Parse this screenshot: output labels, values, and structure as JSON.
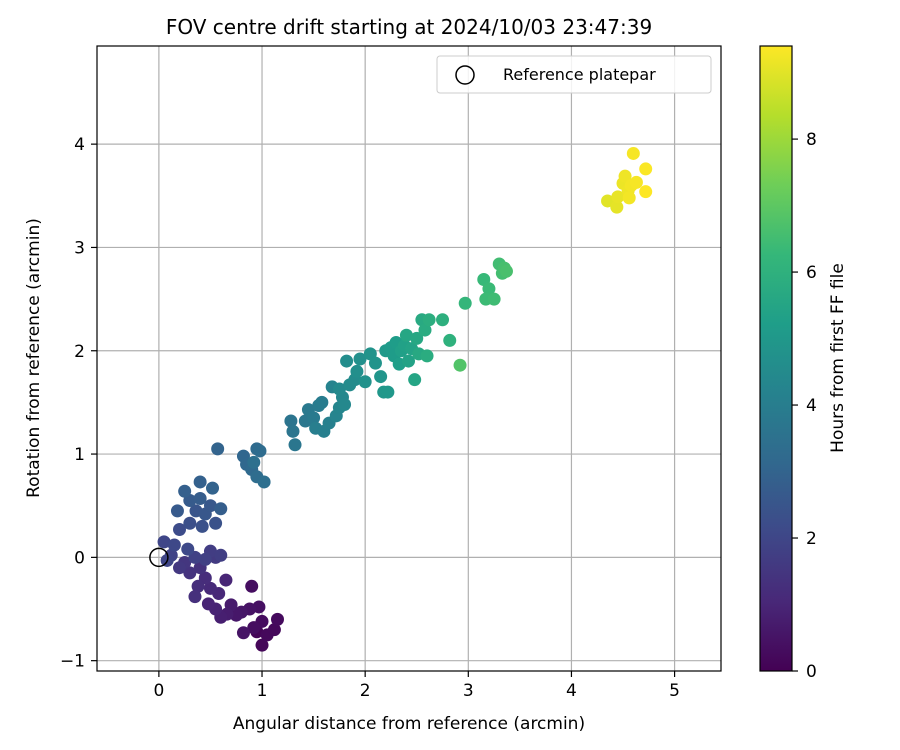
{
  "chart_data": {
    "type": "scatter",
    "title": "FOV centre drift starting at 2024/10/03 23:47:39",
    "xlabel": "Angular distance from reference (arcmin)",
    "ylabel": "Rotation from reference (arcmin)",
    "xlim": [
      -0.6,
      5.45
    ],
    "ylim": [
      -1.1,
      4.95
    ],
    "xticks": [
      0,
      1,
      2,
      3,
      4,
      5
    ],
    "yticks": [
      -1,
      0,
      1,
      2,
      3,
      4
    ],
    "grid": true,
    "legend": {
      "position": "top-right",
      "label": "Reference platepar"
    },
    "colorbar": {
      "label": "Hours from first FF file",
      "colormap": "viridis",
      "range": [
        0,
        9.4
      ],
      "ticks": [
        0,
        2,
        4,
        6,
        8
      ]
    },
    "colormap_stops": [
      "#440154",
      "#482878",
      "#3e4989",
      "#31688e",
      "#26828e",
      "#1f9e89",
      "#35b779",
      "#6ece58",
      "#b5de2b",
      "#fde725"
    ],
    "reference_point": {
      "x": 0.0,
      "y": 0.0
    },
    "series": [
      {
        "points": [
          {
            "x": 0.95,
            "y": -0.72,
            "c": 0.1
          },
          {
            "x": 1.0,
            "y": -0.85,
            "c": 0.15
          },
          {
            "x": 1.05,
            "y": -0.75,
            "c": 0.2
          },
          {
            "x": 1.12,
            "y": -0.7,
            "c": 0.2
          },
          {
            "x": 1.15,
            "y": -0.6,
            "c": 0.25
          },
          {
            "x": 1.0,
            "y": -0.62,
            "c": 0.3
          },
          {
            "x": 0.92,
            "y": -0.68,
            "c": 0.35
          },
          {
            "x": 0.9,
            "y": -0.28,
            "c": 0.35
          },
          {
            "x": 0.97,
            "y": -0.48,
            "c": 0.4
          },
          {
            "x": 0.88,
            "y": -0.5,
            "c": 0.45
          },
          {
            "x": 0.82,
            "y": -0.73,
            "c": 0.5
          },
          {
            "x": 0.8,
            "y": -0.53,
            "c": 0.55
          },
          {
            "x": 0.75,
            "y": -0.56,
            "c": 0.6
          },
          {
            "x": 0.7,
            "y": -0.46,
            "c": 0.7
          },
          {
            "x": 0.66,
            "y": -0.55,
            "c": 0.75
          },
          {
            "x": 0.6,
            "y": -0.58,
            "c": 0.8
          },
          {
            "x": 0.55,
            "y": -0.5,
            "c": 0.9
          },
          {
            "x": 0.48,
            "y": -0.45,
            "c": 0.95
          },
          {
            "x": 0.65,
            "y": -0.22,
            "c": 1.0
          },
          {
            "x": 0.58,
            "y": -0.35,
            "c": 1.05
          },
          {
            "x": 0.5,
            "y": -0.3,
            "c": 1.1
          },
          {
            "x": 0.45,
            "y": -0.2,
            "c": 1.2
          },
          {
            "x": 0.38,
            "y": -0.28,
            "c": 1.25
          },
          {
            "x": 0.35,
            "y": -0.38,
            "c": 1.3
          },
          {
            "x": 0.4,
            "y": -0.1,
            "c": 1.35
          },
          {
            "x": 0.3,
            "y": -0.15,
            "c": 1.4
          },
          {
            "x": 0.25,
            "y": -0.05,
            "c": 1.5
          },
          {
            "x": 0.2,
            "y": -0.1,
            "c": 1.55
          },
          {
            "x": 0.55,
            "y": 0.0,
            "c": 1.6
          },
          {
            "x": 0.5,
            "y": 0.06,
            "c": 1.7
          },
          {
            "x": 0.6,
            "y": 0.02,
            "c": 1.75
          },
          {
            "x": 0.45,
            "y": -0.02,
            "c": 1.8
          },
          {
            "x": 0.35,
            "y": 0.0,
            "c": 1.85
          },
          {
            "x": 0.12,
            "y": 0.02,
            "c": 1.9
          },
          {
            "x": 0.08,
            "y": -0.03,
            "c": 1.95
          },
          {
            "x": 0.05,
            "y": 0.15,
            "c": 2.0
          },
          {
            "x": 0.15,
            "y": 0.12,
            "c": 2.05
          },
          {
            "x": 0.28,
            "y": 0.08,
            "c": 2.1
          },
          {
            "x": 0.2,
            "y": 0.27,
            "c": 2.2
          },
          {
            "x": 0.3,
            "y": 0.33,
            "c": 2.3
          },
          {
            "x": 0.42,
            "y": 0.3,
            "c": 2.35
          },
          {
            "x": 0.55,
            "y": 0.33,
            "c": 2.4
          },
          {
            "x": 0.36,
            "y": 0.45,
            "c": 2.5
          },
          {
            "x": 0.45,
            "y": 0.42,
            "c": 2.55
          },
          {
            "x": 0.5,
            "y": 0.5,
            "c": 2.6
          },
          {
            "x": 0.18,
            "y": 0.45,
            "c": 2.65
          },
          {
            "x": 0.3,
            "y": 0.55,
            "c": 2.7
          },
          {
            "x": 0.4,
            "y": 0.57,
            "c": 2.75
          },
          {
            "x": 0.6,
            "y": 0.47,
            "c": 2.8
          },
          {
            "x": 0.25,
            "y": 0.64,
            "c": 2.85
          },
          {
            "x": 0.4,
            "y": 0.73,
            "c": 2.9
          },
          {
            "x": 0.52,
            "y": 0.67,
            "c": 2.95
          },
          {
            "x": 0.57,
            "y": 1.05,
            "c": 3.0
          },
          {
            "x": 0.82,
            "y": 0.98,
            "c": 3.1
          },
          {
            "x": 0.85,
            "y": 0.9,
            "c": 3.15
          },
          {
            "x": 0.9,
            "y": 0.85,
            "c": 3.2
          },
          {
            "x": 0.95,
            "y": 1.05,
            "c": 3.25
          },
          {
            "x": 0.98,
            "y": 1.03,
            "c": 3.3
          },
          {
            "x": 0.95,
            "y": 0.78,
            "c": 3.35
          },
          {
            "x": 1.02,
            "y": 0.73,
            "c": 3.4
          },
          {
            "x": 0.92,
            "y": 0.92,
            "c": 3.45
          },
          {
            "x": 1.28,
            "y": 1.32,
            "c": 3.6
          },
          {
            "x": 1.3,
            "y": 1.22,
            "c": 3.65
          },
          {
            "x": 1.32,
            "y": 1.09,
            "c": 3.7
          },
          {
            "x": 1.42,
            "y": 1.32,
            "c": 3.75
          },
          {
            "x": 1.45,
            "y": 1.43,
            "c": 3.8
          },
          {
            "x": 1.5,
            "y": 1.35,
            "c": 3.85
          },
          {
            "x": 1.55,
            "y": 1.47,
            "c": 3.9
          },
          {
            "x": 1.58,
            "y": 1.5,
            "c": 3.95
          },
          {
            "x": 1.52,
            "y": 1.25,
            "c": 4.0
          },
          {
            "x": 1.6,
            "y": 1.22,
            "c": 4.05
          },
          {
            "x": 1.65,
            "y": 1.3,
            "c": 4.1
          },
          {
            "x": 1.68,
            "y": 1.65,
            "c": 4.2
          },
          {
            "x": 1.72,
            "y": 1.37,
            "c": 4.25
          },
          {
            "x": 1.75,
            "y": 1.45,
            "c": 4.3
          },
          {
            "x": 1.78,
            "y": 1.55,
            "c": 4.35
          },
          {
            "x": 1.8,
            "y": 1.48,
            "c": 4.4
          },
          {
            "x": 1.75,
            "y": 1.63,
            "c": 4.45
          },
          {
            "x": 1.85,
            "y": 1.67,
            "c": 4.5
          },
          {
            "x": 1.9,
            "y": 1.72,
            "c": 4.55
          },
          {
            "x": 1.82,
            "y": 1.9,
            "c": 4.6
          },
          {
            "x": 1.92,
            "y": 1.8,
            "c": 4.65
          },
          {
            "x": 1.95,
            "y": 1.92,
            "c": 4.7
          },
          {
            "x": 2.0,
            "y": 1.7,
            "c": 4.75
          },
          {
            "x": 2.05,
            "y": 1.97,
            "c": 4.8
          },
          {
            "x": 2.1,
            "y": 1.88,
            "c": 4.85
          },
          {
            "x": 2.15,
            "y": 1.75,
            "c": 4.9
          },
          {
            "x": 2.18,
            "y": 1.6,
            "c": 4.95
          },
          {
            "x": 2.22,
            "y": 1.6,
            "c": 5.0
          },
          {
            "x": 2.2,
            "y": 2.0,
            "c": 5.05
          },
          {
            "x": 2.25,
            "y": 2.03,
            "c": 5.1
          },
          {
            "x": 2.28,
            "y": 1.95,
            "c": 5.15
          },
          {
            "x": 2.3,
            "y": 2.08,
            "c": 5.2
          },
          {
            "x": 2.33,
            "y": 1.87,
            "c": 5.25
          },
          {
            "x": 2.35,
            "y": 2.0,
            "c": 5.3
          },
          {
            "x": 2.38,
            "y": 2.05,
            "c": 5.35
          },
          {
            "x": 2.42,
            "y": 1.9,
            "c": 5.4
          },
          {
            "x": 2.45,
            "y": 2.02,
            "c": 5.45
          },
          {
            "x": 2.48,
            "y": 1.72,
            "c": 5.5
          },
          {
            "x": 2.4,
            "y": 2.15,
            "c": 5.55
          },
          {
            "x": 2.5,
            "y": 2.12,
            "c": 5.6
          },
          {
            "x": 2.52,
            "y": 1.97,
            "c": 5.65
          },
          {
            "x": 2.55,
            "y": 2.3,
            "c": 5.7
          },
          {
            "x": 2.58,
            "y": 2.2,
            "c": 5.75
          },
          {
            "x": 2.6,
            "y": 1.95,
            "c": 5.8
          },
          {
            "x": 2.62,
            "y": 2.3,
            "c": 5.85
          },
          {
            "x": 2.75,
            "y": 2.3,
            "c": 5.95
          },
          {
            "x": 2.82,
            "y": 2.1,
            "c": 6.0
          },
          {
            "x": 2.97,
            "y": 2.46,
            "c": 6.2
          },
          {
            "x": 3.15,
            "y": 2.69,
            "c": 6.3
          },
          {
            "x": 3.2,
            "y": 2.6,
            "c": 6.35
          },
          {
            "x": 3.17,
            "y": 2.5,
            "c": 6.4
          },
          {
            "x": 3.25,
            "y": 2.5,
            "c": 6.45
          },
          {
            "x": 3.3,
            "y": 2.84,
            "c": 6.5
          },
          {
            "x": 3.33,
            "y": 2.75,
            "c": 6.55
          },
          {
            "x": 3.35,
            "y": 2.8,
            "c": 6.6
          },
          {
            "x": 3.37,
            "y": 2.77,
            "c": 6.65
          },
          {
            "x": 2.92,
            "y": 1.86,
            "c": 6.8
          },
          {
            "x": 4.35,
            "y": 3.45,
            "c": 9.0
          },
          {
            "x": 4.44,
            "y": 3.39,
            "c": 9.05
          },
          {
            "x": 4.45,
            "y": 3.49,
            "c": 9.1
          },
          {
            "x": 4.5,
            "y": 3.62,
            "c": 9.15
          },
          {
            "x": 4.52,
            "y": 3.69,
            "c": 9.2
          },
          {
            "x": 4.55,
            "y": 3.55,
            "c": 9.2
          },
          {
            "x": 4.56,
            "y": 3.48,
            "c": 9.25
          },
          {
            "x": 4.58,
            "y": 3.6,
            "c": 9.25
          },
          {
            "x": 4.6,
            "y": 3.91,
            "c": 9.3
          },
          {
            "x": 4.63,
            "y": 3.63,
            "c": 9.3
          },
          {
            "x": 4.72,
            "y": 3.76,
            "c": 9.35
          },
          {
            "x": 4.72,
            "y": 3.54,
            "c": 9.4
          }
        ]
      }
    ]
  }
}
